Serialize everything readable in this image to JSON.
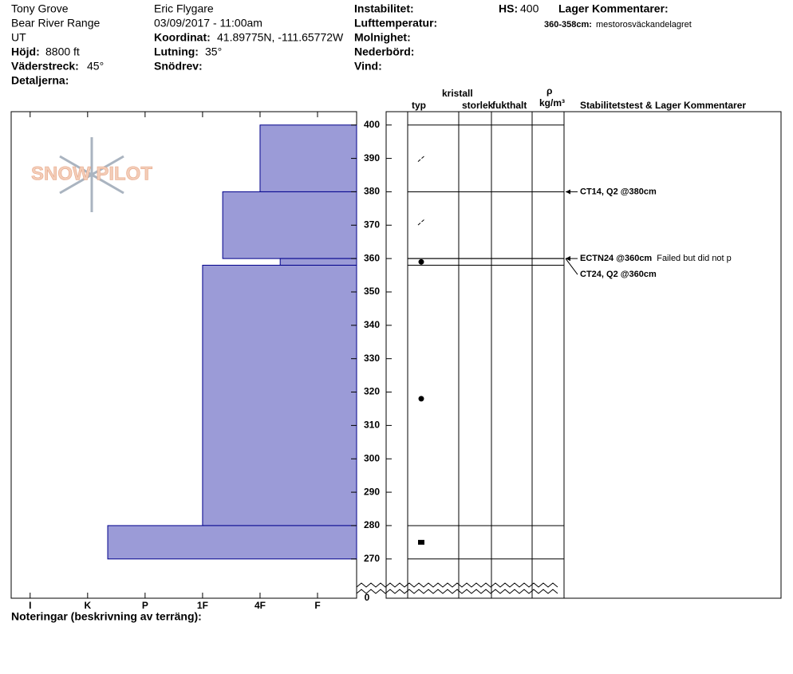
{
  "header": {
    "col1": [
      "Tony Grove",
      "Bear River Range",
      "UT"
    ],
    "elevation": {
      "label": "Höjd:",
      "value": "8800 ft"
    },
    "aspect": {
      "label": "Väderstreck:",
      "value": "45°"
    },
    "details": "Detaljerna:",
    "observer": "Eric Flygare",
    "datetime": "03/09/2017 - 11:00am",
    "coords": {
      "label": "Koordinat:",
      "value": "41.89775N, -111.65772W"
    },
    "slope": {
      "label": "Lutning:",
      "value": "35°"
    },
    "drift": "Snödrev:",
    "col3": [
      "Instabilitet:",
      "Lufttemperatur:",
      "Molnighet:",
      "Nederbörd:",
      "Vind:"
    ],
    "hs": {
      "label": "HS:",
      "value": "400"
    },
    "layer_comments_title": "Lager Kommentarer:",
    "layer_comment": {
      "range": "360-358cm:",
      "text": "mestorosväckandelagret"
    }
  },
  "logo": "SNOW PILOT",
  "columns": {
    "type": "typ",
    "crystal": "kristall",
    "size": "storlek",
    "moisture": "fukthalt",
    "rho": "ρ",
    "density": "kg/m³",
    "stability": "Stabilitetstest & Lager Kommentarer"
  },
  "chart_data": {
    "type": "snow-profile",
    "ylim": [
      266,
      404
    ],
    "yticks": [
      400,
      390,
      380,
      370,
      360,
      350,
      340,
      330,
      320,
      310,
      300,
      290,
      280,
      270
    ],
    "break_tick": 0,
    "xlim": [
      6.33,
      0.32
    ],
    "xticks": [
      {
        "value": 6,
        "label": "I"
      },
      {
        "value": 5,
        "label": "K"
      },
      {
        "value": 4,
        "label": "P"
      },
      {
        "value": 3,
        "label": "1F"
      },
      {
        "value": 2,
        "label": "4F"
      },
      {
        "value": 1,
        "label": "F"
      }
    ],
    "color": "#9b9bd7",
    "layers": [
      {
        "top": 400,
        "bottom": 380,
        "hardness": 2
      },
      {
        "top": 380,
        "bottom": 360,
        "hardness": 2.65
      },
      {
        "top": 360,
        "bottom": 358,
        "hardness": 1.65
      },
      {
        "top": 358,
        "bottom": 280,
        "hardness": 3
      },
      {
        "top": 280,
        "bottom": 270,
        "hardness": 4.65
      }
    ],
    "grains": [
      {
        "height": 390,
        "symbol": "slash"
      },
      {
        "height": 371,
        "symbol": "slash"
      },
      {
        "height": 359,
        "symbol": "dot"
      },
      {
        "height": 318,
        "symbol": "dot"
      },
      {
        "height": 275,
        "symbol": "square"
      }
    ],
    "tests": [
      {
        "label": "CT14, Q2 @380cm",
        "height": 380
      },
      {
        "label": "ECTN24 @360cm",
        "comment": "Failed but did not p",
        "height": 360
      },
      {
        "label": "CT24, Q2 @360cm",
        "height": 360
      }
    ]
  },
  "notes": "Noteringar (beskrivning av terräng):"
}
